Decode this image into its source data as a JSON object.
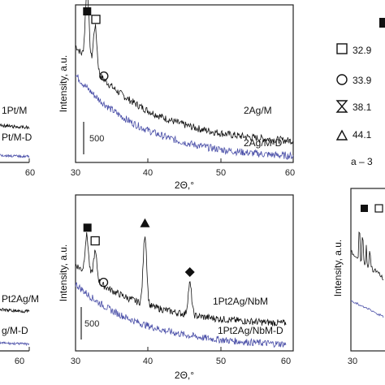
{
  "colors": {
    "sample": "#111111",
    "degraded": "#4a4fa8",
    "axis": "#222222"
  },
  "figure": {
    "left_top_labels": [
      "1Pt/M",
      "Pt/M-D"
    ],
    "left_top_ticks": [
      "60"
    ],
    "left_bottom_labels": [
      "Pt2Ag/M",
      "g/M-D"
    ],
    "left_bottom_ticks": [
      "60"
    ],
    "legend_labels": [
      "32.9",
      "33.9",
      "38.1",
      "44.1",
      "a – 3"
    ],
    "right_bottom_ticks": [
      "30"
    ],
    "right_bottom_ylabel": "Intensity, a.u."
  },
  "chart_data": [
    {
      "type": "line",
      "ylabel": "Intensity, a.u.",
      "xlabel": "2Θ,°",
      "xlim": [
        30,
        60
      ],
      "x_ticks": [
        "30",
        "40",
        "50",
        "60"
      ],
      "scale_bar": "500",
      "series": [
        {
          "name": "2Ag/M",
          "role": "sample",
          "peaks": [
            [
              31.6,
              1.0
            ],
            [
              32.7,
              0.6
            ]
          ],
          "baseline": [
            0.8,
            0.12
          ]
        },
        {
          "name": "2Ag/M-D",
          "role": "degraded",
          "peaks": [],
          "baseline": [
            0.6,
            0.02
          ]
        }
      ],
      "markers": [
        {
          "symbol": "filled-square",
          "x": 31.6
        },
        {
          "symbol": "open-square",
          "x": 32.8
        },
        {
          "symbol": "open-circle",
          "x": 33.9
        }
      ]
    },
    {
      "type": "line",
      "ylabel": "Intensity, a.u.",
      "xlabel": "2Θ,°",
      "xlim": [
        30,
        60
      ],
      "x_ticks": [
        "30",
        "40",
        "50",
        "60"
      ],
      "scale_bar": "500",
      "series": [
        {
          "name": "1Pt2Ag/NbM",
          "role": "sample",
          "peaks": [
            [
              31.6,
              0.55
            ],
            [
              32.8,
              0.4
            ],
            [
              39.9,
              1.0
            ],
            [
              46.3,
              0.45
            ]
          ],
          "baseline": [
            0.62,
            0.18
          ]
        },
        {
          "name": "1Pt2Ag/NbM-D",
          "role": "degraded",
          "peaks": [],
          "baseline": [
            0.48,
            0.03
          ]
        }
      ],
      "markers": [
        {
          "symbol": "filled-square",
          "x": 31.7
        },
        {
          "symbol": "open-square",
          "x": 32.8
        },
        {
          "symbol": "open-circle",
          "x": 34.0
        },
        {
          "symbol": "filled-triangle",
          "x": 39.9
        },
        {
          "symbol": "filled-diamond",
          "x": 46.3
        }
      ]
    }
  ]
}
